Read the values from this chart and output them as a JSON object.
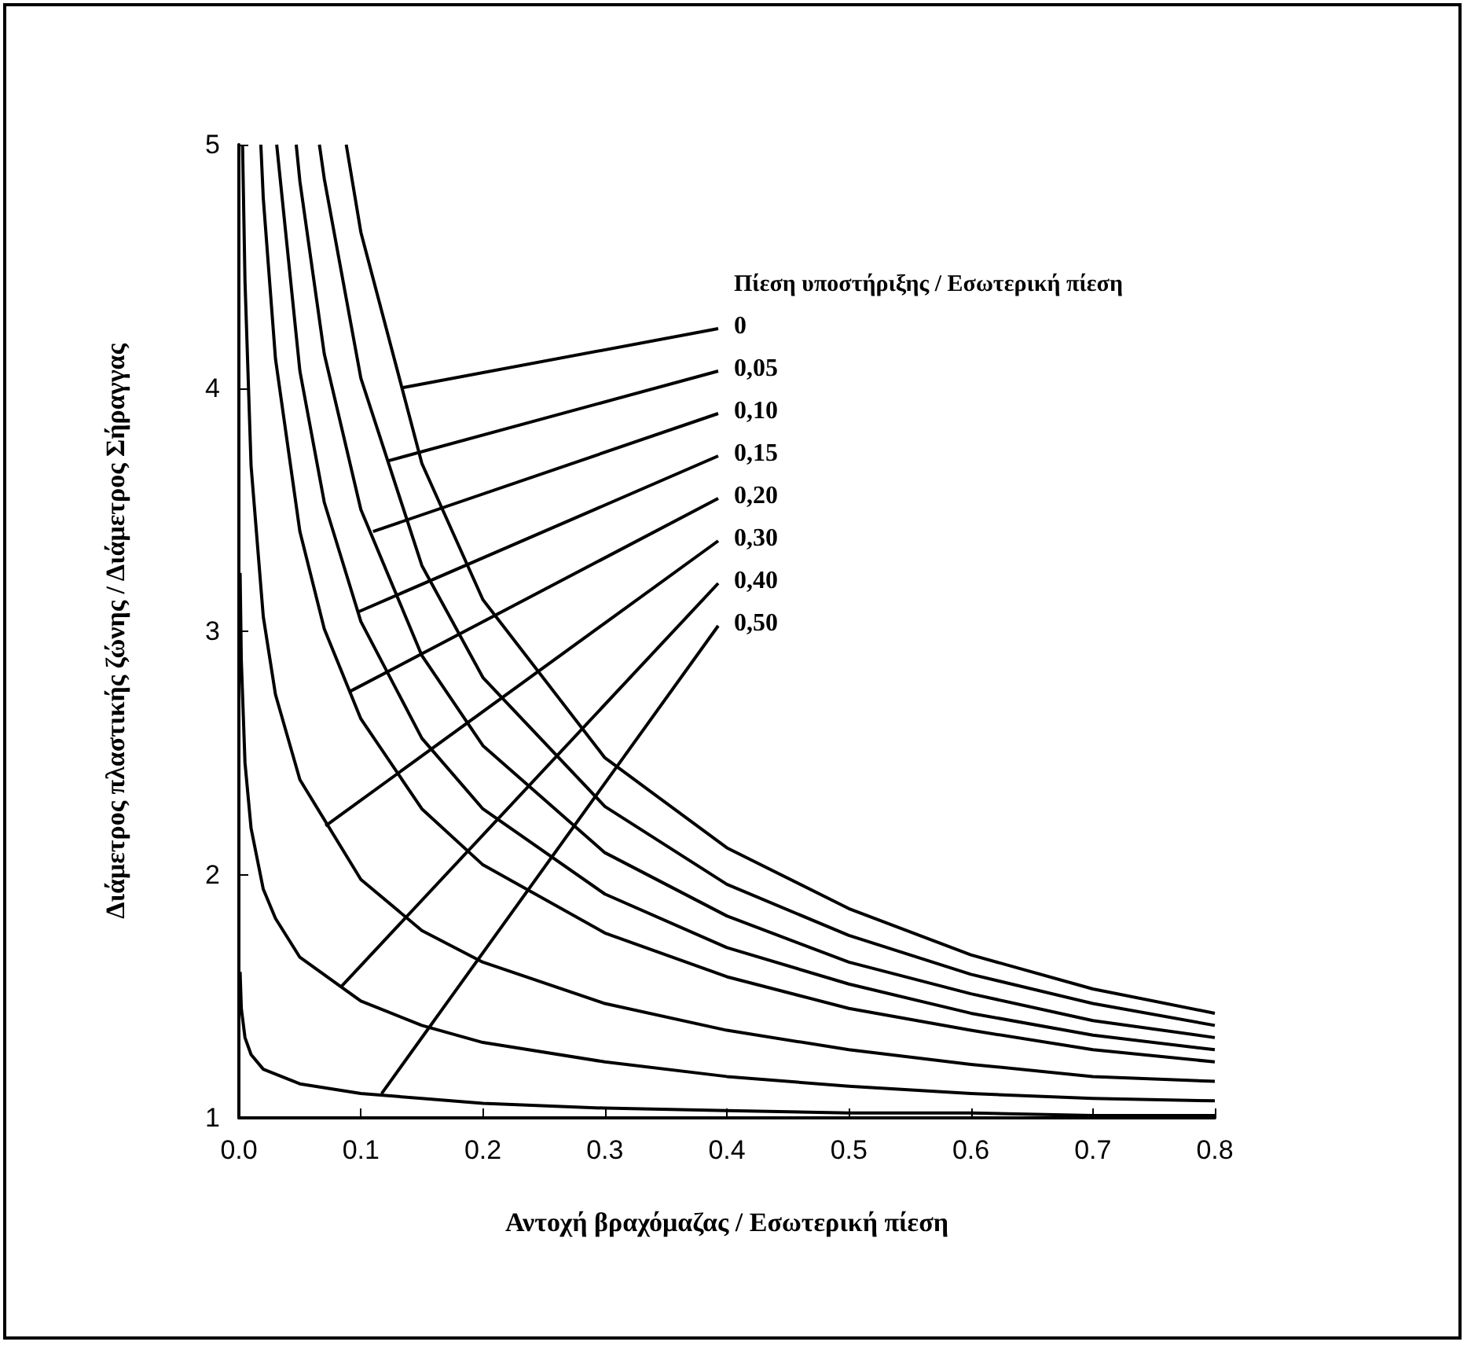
{
  "chart_data": {
    "type": "line",
    "xlabel": "Αντοχή βραχόμαζας / Εσωτερική πίεση",
    "ylabel": "Διάμετρος πλαστικής ζώνης / Διάμετρος Σήραγγας",
    "legend_title": "Πίεση υποστήριξης / Εσωτερική  πίεση",
    "xlim": [
      0,
      0.8
    ],
    "ylim": [
      1,
      5
    ],
    "xticks": [
      {
        "value": 0,
        "label": "0.0"
      },
      {
        "value": 0.1,
        "label": "0.1"
      },
      {
        "value": 0.2,
        "label": "0.2"
      },
      {
        "value": 0.3,
        "label": "0.3"
      },
      {
        "value": 0.4,
        "label": "0.4"
      },
      {
        "value": 0.5,
        "label": "0.5"
      },
      {
        "value": 0.6,
        "label": "0.6"
      },
      {
        "value": 0.7,
        "label": "0.7"
      },
      {
        "value": 0.8,
        "label": "0.8"
      }
    ],
    "yticks": [
      1,
      2,
      3,
      4,
      5
    ],
    "series": [
      {
        "color": "#000000",
        "x": [
          0.088,
          0.1,
          0.15,
          0.2,
          0.3,
          0.4,
          0.5,
          0.6,
          0.7,
          0.8
        ],
        "values": [
          5,
          4.64,
          3.69,
          3.13,
          2.48,
          2.11,
          1.86,
          1.67,
          1.53,
          1.43
        ]
      },
      {
        "color": "#000000",
        "x": [
          0.066,
          0.07,
          0.1,
          0.15,
          0.2,
          0.3,
          0.4,
          0.5,
          0.6,
          0.7,
          0.8
        ],
        "values": [
          5,
          4.86,
          4.04,
          3.27,
          2.81,
          2.28,
          1.96,
          1.75,
          1.59,
          1.47,
          1.38
        ]
      },
      {
        "color": "#000000",
        "x": [
          0.047,
          0.05,
          0.07,
          0.1,
          0.15,
          0.2,
          0.3,
          0.4,
          0.5,
          0.6,
          0.7,
          0.8
        ],
        "values": [
          5,
          4.85,
          4.14,
          3.5,
          2.9,
          2.53,
          2.09,
          1.83,
          1.64,
          1.51,
          1.4,
          1.33
        ]
      },
      {
        "color": "#000000",
        "x": [
          0.031,
          0.05,
          0.07,
          0.1,
          0.15,
          0.2,
          0.3,
          0.4,
          0.5,
          0.6,
          0.7,
          0.8
        ],
        "values": [
          5,
          4.07,
          3.53,
          3.04,
          2.56,
          2.27,
          1.92,
          1.7,
          1.55,
          1.43,
          1.34,
          1.28
        ]
      },
      {
        "color": "#000000",
        "x": [
          0.018,
          0.02,
          0.03,
          0.05,
          0.07,
          0.1,
          0.15,
          0.2,
          0.3,
          0.4,
          0.5,
          0.6,
          0.7,
          0.8
        ],
        "values": [
          5,
          4.78,
          4.12,
          3.41,
          3.01,
          2.64,
          2.27,
          2.04,
          1.76,
          1.58,
          1.45,
          1.36,
          1.28,
          1.23
        ]
      },
      {
        "color": "#000000",
        "x": [
          0.003,
          0.005,
          0.01,
          0.02,
          0.03,
          0.05,
          0.1,
          0.15,
          0.2,
          0.3,
          0.4,
          0.5,
          0.6,
          0.7,
          0.8
        ],
        "values": [
          5,
          4.44,
          3.68,
          3.06,
          2.74,
          2.39,
          1.98,
          1.77,
          1.64,
          1.47,
          1.36,
          1.28,
          1.22,
          1.17,
          1.15
        ]
      },
      {
        "color": "#000000",
        "x": [
          0.001,
          0.002,
          0.005,
          0.01,
          0.02,
          0.03,
          0.05,
          0.1,
          0.15,
          0.2,
          0.3,
          0.4,
          0.5,
          0.6,
          0.7,
          0.8
        ],
        "values": [
          3.24,
          2.88,
          2.46,
          2.19,
          1.94,
          1.82,
          1.66,
          1.48,
          1.38,
          1.31,
          1.23,
          1.17,
          1.13,
          1.1,
          1.08,
          1.07
        ]
      },
      {
        "color": "#000000",
        "x": [
          0.001,
          0.002,
          0.005,
          0.01,
          0.02,
          0.05,
          0.1,
          0.15,
          0.2,
          0.3,
          0.4,
          0.5,
          0.6,
          0.7,
          0.8
        ],
        "values": [
          1.6,
          1.45,
          1.33,
          1.26,
          1.2,
          1.14,
          1.1,
          1.08,
          1.06,
          1.04,
          1.03,
          1.02,
          1.02,
          1.01,
          1.01
        ]
      }
    ],
    "annotations": [
      {
        "text": "0",
        "x": 0.133,
        "y": 4.0
      },
      {
        "text": "0,05",
        "x": 0.122,
        "y": 3.7
      },
      {
        "text": "0,10",
        "x": 0.11,
        "y": 3.41
      },
      {
        "text": "0,15",
        "x": 0.098,
        "y": 3.08
      },
      {
        "text": "0,20",
        "x": 0.09,
        "y": 2.75
      },
      {
        "text": "0,30",
        "x": 0.071,
        "y": 2.2
      },
      {
        "text": "0,40",
        "x": 0.084,
        "y": 1.54
      },
      {
        "text": "0,50",
        "x": 0.117,
        "y": 1.1
      }
    ]
  }
}
